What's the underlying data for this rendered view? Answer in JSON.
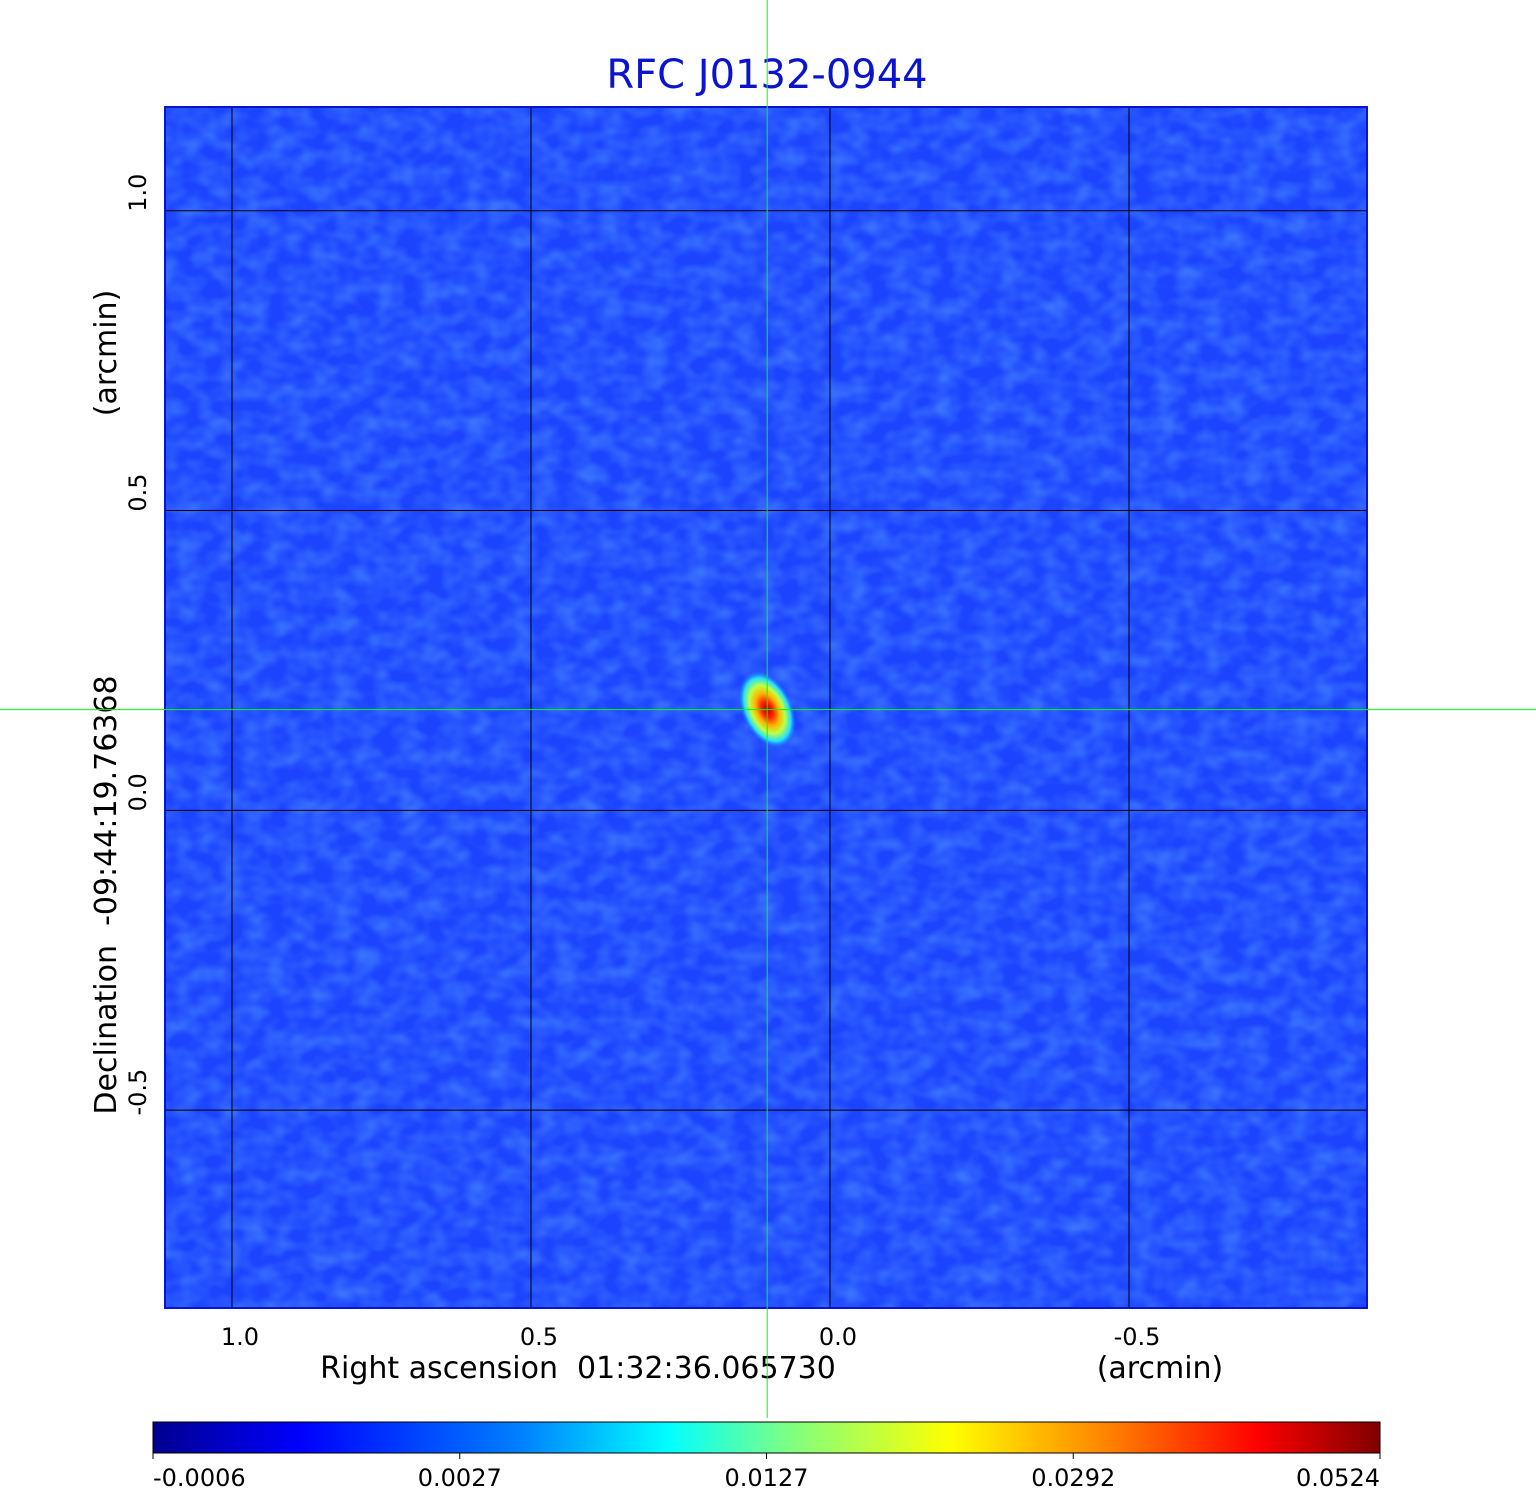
{
  "chart_data": {
    "type": "image",
    "title": "RFC J0132-0944",
    "x_label": "Right ascension  01:32:36.065730",
    "x_unit": "(arcmin)",
    "y_label": "Declination  -09:44:19.76368",
    "y_unit": "(arcmin)",
    "xlim": [
      1.112,
      -0.898
    ],
    "ylim": [
      -0.83,
      1.173
    ],
    "xticks": [
      {
        "value": 1,
        "label": "1.0"
      },
      0.5,
      {
        "value": 0,
        "label": "0.0"
      },
      -0.5
    ],
    "yticks": [
      -0.5,
      {
        "value": 0,
        "label": "0.0"
      },
      0.5,
      {
        "value": 1,
        "label": "1.0"
      }
    ],
    "grid": true,
    "source": {
      "x": 0.105,
      "y": 0.168,
      "peak": 0.0524
    },
    "crosshair": {
      "x": 0.105,
      "y": 0.168,
      "color": "#00ff00"
    },
    "colormap": "jet",
    "colorbar_ticks": [
      -0.0006,
      0.0027,
      0.0127,
      0.0292,
      0.0524
    ]
  }
}
